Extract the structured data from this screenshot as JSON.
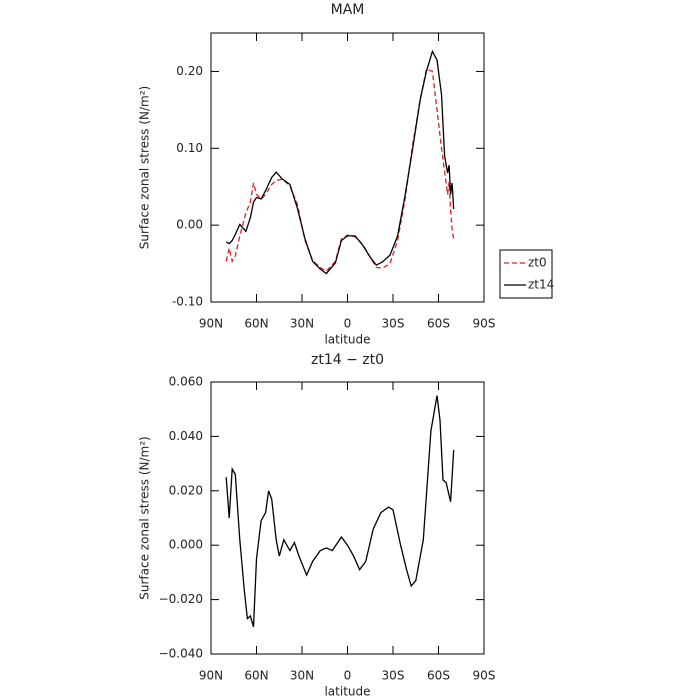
{
  "chart_data": [
    {
      "type": "line",
      "title": "MAM",
      "x_label": "latitude",
      "y_label": "Surface zonal stress (N/m²)",
      "x": [
        80,
        78,
        76,
        74,
        71,
        67,
        64,
        62,
        60,
        57,
        54,
        50,
        47,
        43,
        38,
        33,
        28,
        23,
        18,
        14,
        8,
        4,
        0,
        -5,
        -10,
        -15,
        -19,
        -23,
        -28,
        -33,
        -38,
        -43,
        -48,
        -52,
        -56,
        -59,
        -62,
        -64,
        -66,
        -67,
        -68,
        -69,
        -70
      ],
      "series": [
        {
          "name": "zt0",
          "color": "#e0201b",
          "dash": true,
          "values": [
            -0.047,
            -0.03,
            -0.047,
            -0.04,
            -0.014,
            0.016,
            0.03,
            0.055,
            0.04,
            0.034,
            0.04,
            0.053,
            0.058,
            0.06,
            0.051,
            0.027,
            -0.02,
            -0.046,
            -0.055,
            -0.06,
            -0.047,
            -0.018,
            -0.013,
            -0.015,
            -0.025,
            -0.042,
            -0.055,
            -0.056,
            -0.05,
            -0.02,
            0.034,
            0.105,
            0.164,
            0.203,
            0.2,
            0.15,
            0.1,
            0.07,
            0.04,
            0.056,
            0.02,
            -0.005,
            -0.018
          ]
        },
        {
          "name": "zt14",
          "color": "#000000",
          "dash": false,
          "values": [
            -0.022,
            -0.024,
            -0.02,
            -0.012,
            0.001,
            -0.008,
            0.01,
            0.03,
            0.036,
            0.034,
            0.045,
            0.062,
            0.069,
            0.06,
            0.053,
            0.022,
            -0.018,
            -0.047,
            -0.057,
            -0.063,
            -0.049,
            -0.02,
            -0.014,
            -0.014,
            -0.026,
            -0.042,
            -0.052,
            -0.048,
            -0.039,
            -0.014,
            0.039,
            0.1,
            0.164,
            0.2,
            0.226,
            0.215,
            0.17,
            0.09,
            0.068,
            0.078,
            0.04,
            0.055,
            0.021
          ]
        }
      ],
      "xlim": [
        90,
        -90
      ],
      "xticks": [
        {
          "value": 90,
          "label": "90N"
        },
        {
          "value": 60,
          "label": "60N"
        },
        {
          "value": 30,
          "label": "30N"
        },
        0,
        {
          "value": -30,
          "label": "30S"
        },
        {
          "value": -60,
          "label": "60S"
        },
        {
          "value": -90,
          "label": "90S"
        }
      ],
      "ylim": [
        -0.1,
        0.25
      ],
      "yticks": [
        {
          "value": -0.1,
          "label": "-0.10"
        },
        {
          "value": 0,
          "label": "0.00"
        },
        {
          "value": 0.1,
          "label": "0.10"
        },
        {
          "value": 0.2,
          "label": "0.20"
        }
      ],
      "legend": "right"
    },
    {
      "type": "line",
      "title": "zt14 − zt0",
      "x_label": "latitude",
      "y_label": "Surface zonal stress (N/m²)",
      "x": [
        80,
        78,
        76,
        74,
        71,
        68,
        66,
        64,
        62,
        60,
        57,
        54,
        52,
        50,
        47,
        45,
        42,
        38,
        35,
        32,
        27,
        23,
        18,
        14,
        10,
        4,
        0,
        -4,
        -8,
        -12,
        -17,
        -22,
        -27,
        -30,
        -35,
        -39,
        -42,
        -45,
        -50,
        -55,
        -59,
        -61,
        -63,
        -65,
        -68,
        -70
      ],
      "values": [
        0.025,
        0.01,
        0.028,
        0.026,
        0.002,
        -0.017,
        -0.027,
        -0.026,
        -0.03,
        -0.005,
        0.009,
        0.012,
        0.02,
        0.017,
        0.002,
        -0.004,
        0.002,
        -0.002,
        0.001,
        -0.004,
        -0.011,
        -0.006,
        -0.002,
        -0.001,
        -0.002,
        0.003,
        0,
        -0.004,
        -0.009,
        -0.006,
        0.006,
        0.012,
        0.014,
        0.013,
        0,
        -0.009,
        -0.015,
        -0.013,
        0.002,
        0.042,
        0.055,
        0.046,
        0.024,
        0.023,
        0.016,
        0.035
      ],
      "color": "#000000",
      "xlim": [
        90,
        -90
      ],
      "xticks": [
        {
          "value": 90,
          "label": "90N"
        },
        {
          "value": 60,
          "label": "60N"
        },
        {
          "value": 30,
          "label": "30N"
        },
        0,
        {
          "value": -30,
          "label": "30S"
        },
        {
          "value": -60,
          "label": "60S"
        },
        {
          "value": -90,
          "label": "90S"
        }
      ],
      "ylim": [
        -0.04,
        0.06
      ],
      "yticks": [
        {
          "value": -0.04,
          "label": "−0.040"
        },
        {
          "value": -0.02,
          "label": "−0.020"
        },
        {
          "value": 0,
          "label": "0.000"
        },
        {
          "value": 0.02,
          "label": "0.020"
        },
        {
          "value": 0.04,
          "label": "0.040"
        },
        {
          "value": 0.06,
          "label": "0.060"
        }
      ]
    }
  ]
}
